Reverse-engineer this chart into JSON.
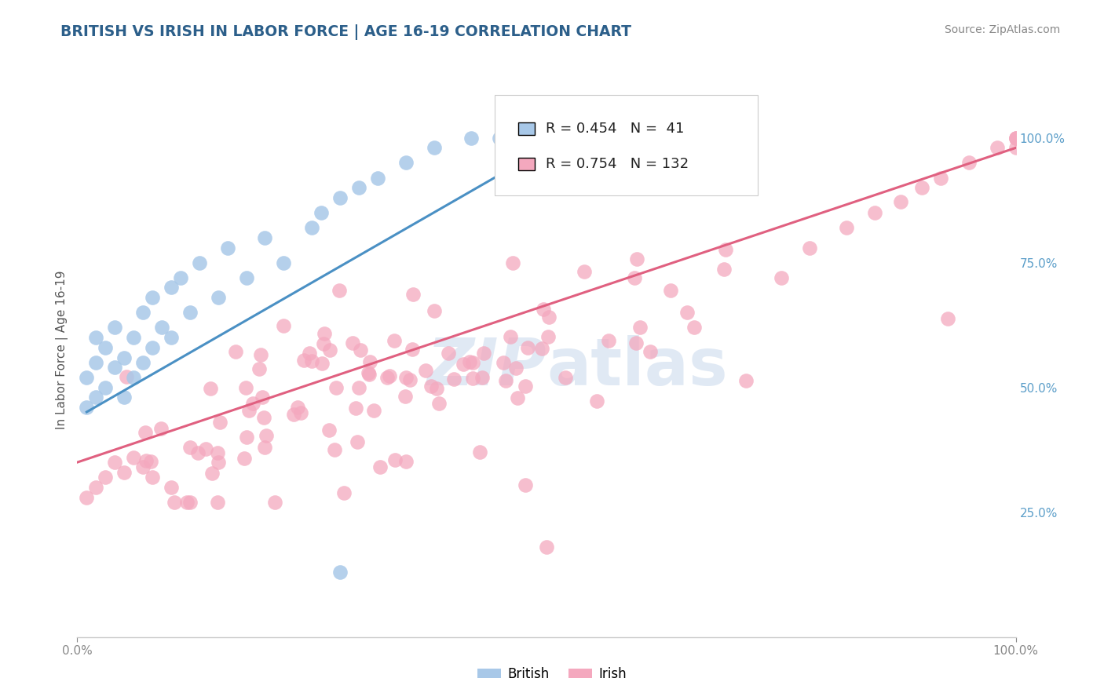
{
  "title": "BRITISH VS IRISH IN LABOR FORCE | AGE 16-19 CORRELATION CHART",
  "source": "Source: ZipAtlas.com",
  "ylabel": "In Labor Force | Age 16-19",
  "xlim": [
    0.0,
    1.0
  ],
  "ylim": [
    0.0,
    1.15
  ],
  "british_R": 0.454,
  "british_N": 41,
  "irish_R": 0.754,
  "irish_N": 132,
  "british_color": "#a8c8e8",
  "irish_color": "#f4a8be",
  "british_line_color": "#4a90c4",
  "irish_line_color": "#e06080",
  "watermark_zip": "ZIP",
  "watermark_atlas": "atlas",
  "bg_color": "#ffffff",
  "grid_color": "#cccccc",
  "right_tick_color": "#5b9ec9",
  "title_color": "#2c5f8a",
  "source_color": "#888888",
  "ylabel_color": "#555555"
}
